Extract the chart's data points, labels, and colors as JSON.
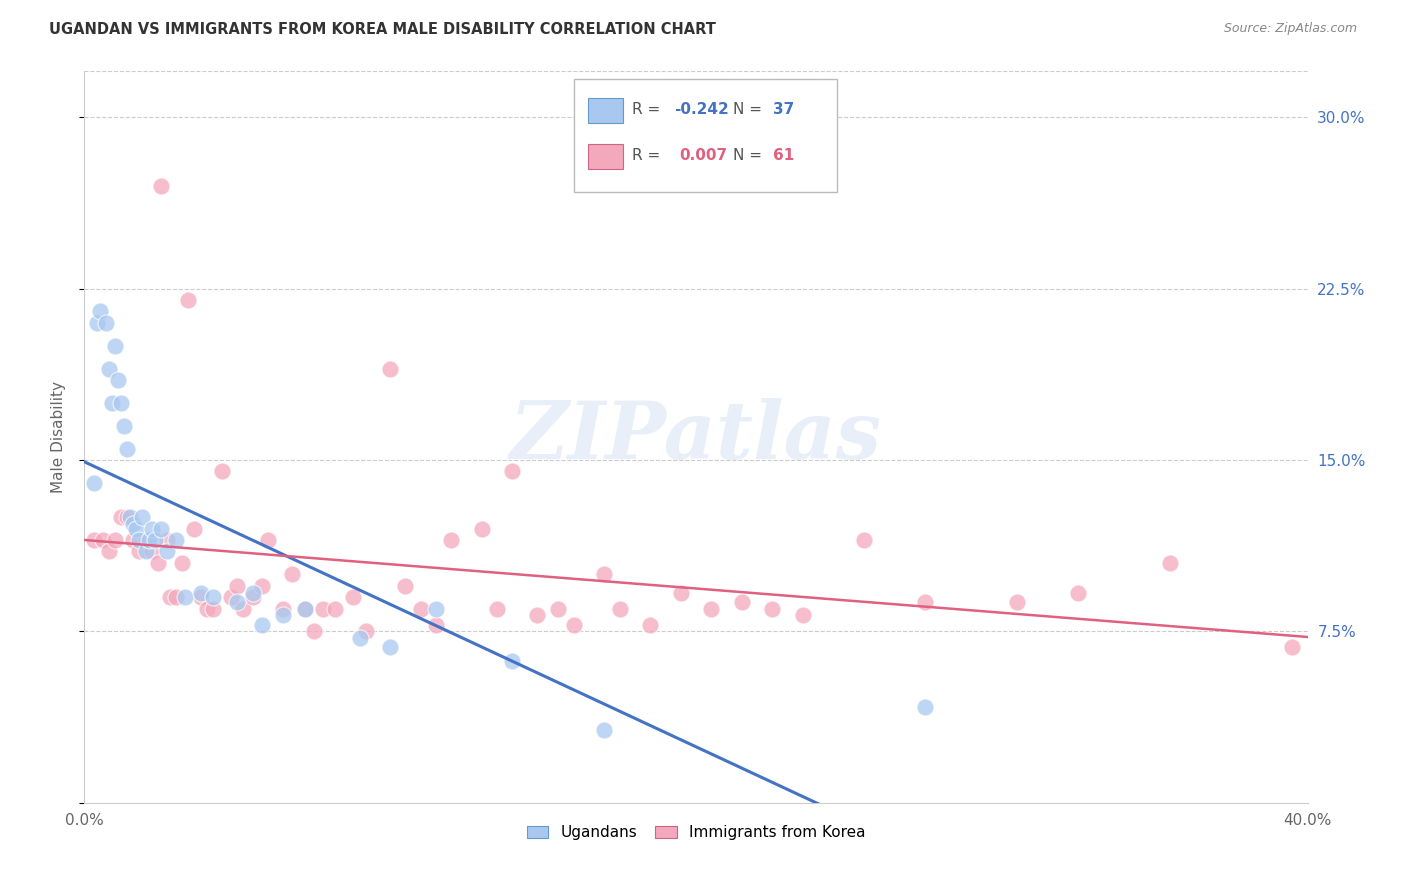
{
  "title": "UGANDAN VS IMMIGRANTS FROM KOREA MALE DISABILITY CORRELATION CHART",
  "source": "Source: ZipAtlas.com",
  "ylabel": "Male Disability",
  "xlim": [
    0.0,
    0.4
  ],
  "ylim": [
    0.0,
    0.32
  ],
  "yticks": [
    0.0,
    0.075,
    0.15,
    0.225,
    0.3
  ],
  "ytick_labels": [
    "",
    "7.5%",
    "15.0%",
    "22.5%",
    "30.0%"
  ],
  "xtick_left_label": "0.0%",
  "xtick_right_label": "40.0%",
  "ugandan_color": "#A8C8F0",
  "ugandan_edge_color": "#6699CC",
  "korea_color": "#F4A8BC",
  "korea_edge_color": "#CC6688",
  "ugandan_label": "Ugandans",
  "korea_label": "Immigrants from Korea",
  "R_ugandan": -0.242,
  "N_ugandan": 37,
  "R_korea": 0.007,
  "N_korea": 61,
  "line_color_ugandan": "#4472C4",
  "line_color_korea": "#E06080",
  "ugandan_x": [
    0.003,
    0.004,
    0.005,
    0.007,
    0.008,
    0.009,
    0.01,
    0.011,
    0.012,
    0.013,
    0.014,
    0.015,
    0.016,
    0.017,
    0.018,
    0.019,
    0.02,
    0.021,
    0.022,
    0.023,
    0.025,
    0.027,
    0.03,
    0.033,
    0.038,
    0.042,
    0.05,
    0.055,
    0.058,
    0.065,
    0.072,
    0.09,
    0.1,
    0.115,
    0.14,
    0.17,
    0.275
  ],
  "ugandan_y": [
    0.14,
    0.21,
    0.215,
    0.21,
    0.19,
    0.175,
    0.2,
    0.185,
    0.175,
    0.165,
    0.155,
    0.125,
    0.122,
    0.12,
    0.115,
    0.125,
    0.11,
    0.115,
    0.12,
    0.115,
    0.12,
    0.11,
    0.115,
    0.09,
    0.092,
    0.09,
    0.088,
    0.092,
    0.078,
    0.082,
    0.085,
    0.072,
    0.068,
    0.085,
    0.062,
    0.032,
    0.042
  ],
  "korea_x": [
    0.003,
    0.006,
    0.008,
    0.01,
    0.012,
    0.014,
    0.016,
    0.018,
    0.02,
    0.022,
    0.024,
    0.025,
    0.027,
    0.028,
    0.03,
    0.032,
    0.034,
    0.036,
    0.038,
    0.04,
    0.042,
    0.045,
    0.048,
    0.05,
    0.052,
    0.055,
    0.058,
    0.06,
    0.065,
    0.068,
    0.072,
    0.075,
    0.078,
    0.082,
    0.088,
    0.092,
    0.1,
    0.105,
    0.11,
    0.115,
    0.12,
    0.13,
    0.135,
    0.14,
    0.148,
    0.155,
    0.16,
    0.17,
    0.175,
    0.185,
    0.195,
    0.205,
    0.215,
    0.225,
    0.235,
    0.255,
    0.275,
    0.305,
    0.325,
    0.355,
    0.395
  ],
  "korea_y": [
    0.115,
    0.115,
    0.11,
    0.115,
    0.125,
    0.125,
    0.115,
    0.11,
    0.115,
    0.11,
    0.105,
    0.27,
    0.115,
    0.09,
    0.09,
    0.105,
    0.22,
    0.12,
    0.09,
    0.085,
    0.085,
    0.145,
    0.09,
    0.095,
    0.085,
    0.09,
    0.095,
    0.115,
    0.085,
    0.1,
    0.085,
    0.075,
    0.085,
    0.085,
    0.09,
    0.075,
    0.19,
    0.095,
    0.085,
    0.078,
    0.115,
    0.12,
    0.085,
    0.145,
    0.082,
    0.085,
    0.078,
    0.1,
    0.085,
    0.078,
    0.092,
    0.085,
    0.088,
    0.085,
    0.082,
    0.115,
    0.088,
    0.088,
    0.092,
    0.105,
    0.068
  ],
  "watermark_text": "ZIPatlas",
  "background_color": "#FFFFFF",
  "grid_color": "#CCCCCC",
  "title_color": "#333333",
  "source_color": "#888888",
  "tick_color": "#666666"
}
